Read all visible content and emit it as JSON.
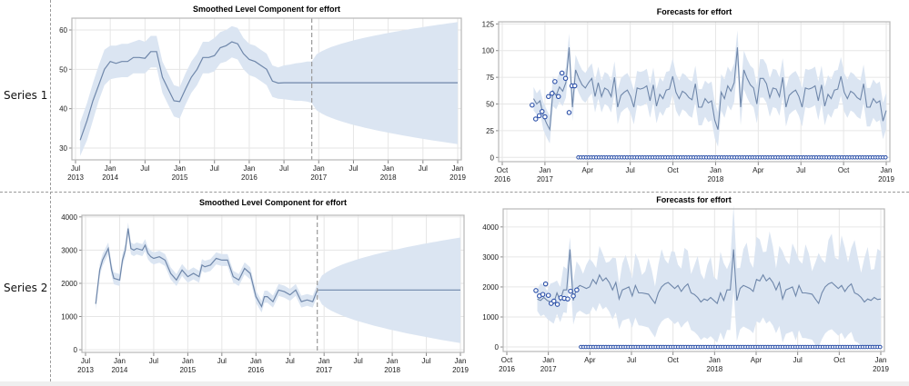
{
  "rows": [
    {
      "label": "Series 1"
    },
    {
      "label": "Series 2"
    }
  ],
  "colors": {
    "band": "#dbe5f2",
    "line": "#6f87aa",
    "marker": "#2a4fa8",
    "grid": "#e6e6e6",
    "frame": "#b7b7b7",
    "refline": "#9a9a9a"
  },
  "chart_data": [
    {
      "id": "s1-level",
      "type": "line",
      "title": "Smoothed Level Component for effort",
      "xlabel": "",
      "ylabel": "",
      "xlim": [
        "2013-07",
        "2019-01"
      ],
      "ylim": [
        27,
        63
      ],
      "yticks": [
        30,
        40,
        50,
        60
      ],
      "xticks": [
        {
          "t": 0,
          "l1": "Jul",
          "l2": "2013"
        },
        {
          "t": 6,
          "l1": "Jan",
          "l2": "2014"
        },
        {
          "t": 12,
          "l1": "Jul",
          "l2": ""
        },
        {
          "t": 18,
          "l1": "Jan",
          "l2": "2015"
        },
        {
          "t": 24,
          "l1": "Jul",
          "l2": ""
        },
        {
          "t": 30,
          "l1": "Jan",
          "l2": "2016"
        },
        {
          "t": 36,
          "l1": "Jul",
          "l2": ""
        },
        {
          "t": 42,
          "l1": "Jan",
          "l2": "2017"
        },
        {
          "t": 48,
          "l1": "Jul",
          "l2": ""
        },
        {
          "t": 54,
          "l1": "Jan",
          "l2": "2018"
        },
        {
          "t": 60,
          "l1": "Jul",
          "l2": ""
        },
        {
          "t": 66,
          "l1": "Jan",
          "l2": "2019"
        }
      ],
      "forecast_start_month": 40.8,
      "grid": true,
      "series": {
        "months": [
          0.8,
          2,
          3,
          4,
          5,
          6,
          7,
          8,
          9,
          10,
          11,
          12,
          13,
          14,
          15,
          16,
          17,
          18,
          19,
          20,
          21,
          22,
          23,
          24,
          25,
          26,
          27,
          28,
          29,
          30,
          31,
          32,
          33,
          34,
          35,
          36,
          37,
          38,
          39,
          40,
          40.8,
          66
        ],
        "level": [
          32,
          37,
          42,
          46,
          50,
          52,
          51.5,
          52,
          52,
          53,
          53,
          52.8,
          54.5,
          54.5,
          48,
          45,
          42,
          41.8,
          45,
          48,
          50,
          53,
          53,
          53.5,
          55.5,
          56,
          57,
          56.5,
          54,
          52.5,
          52,
          51,
          50,
          47,
          46.5,
          46.6,
          46.6,
          46.6,
          46.6,
          46.6,
          46.6,
          46.6
        ],
        "lower": [
          28,
          32,
          37,
          42,
          46,
          47.5,
          47.8,
          48,
          48,
          49,
          49,
          49,
          50.5,
          50.5,
          44,
          41,
          38,
          37.5,
          41,
          44,
          46,
          49,
          49,
          49.5,
          51.5,
          52,
          53,
          52.5,
          50,
          48.5,
          48,
          47,
          46,
          43,
          42.5,
          42.4,
          42.2,
          42,
          42,
          41.8,
          41.5,
          31
        ],
        "upper": [
          36.5,
          41.5,
          46.5,
          51,
          55,
          56,
          56,
          56.5,
          56.5,
          57,
          57.5,
          57,
          58.5,
          58.5,
          52,
          49,
          46,
          45.5,
          49,
          52,
          54,
          57,
          57,
          58,
          59.5,
          60,
          61,
          60.5,
          58,
          56.5,
          56,
          55,
          54,
          51,
          50.5,
          51,
          51.2,
          51.5,
          51.7,
          52,
          52,
          62
        ]
      }
    },
    {
      "id": "s1-forecast",
      "type": "line",
      "title": "Forecasts for effort",
      "xlabel": "",
      "ylabel": "",
      "xlim": [
        "2016-10",
        "2019-01"
      ],
      "ylim": [
        -4,
        127
      ],
      "yticks": [
        0,
        25,
        50,
        75,
        100,
        125
      ],
      "xticks": [
        {
          "t": 0,
          "l1": "Oct",
          "l2": "2016"
        },
        {
          "t": 3,
          "l1": "Jan",
          "l2": "2017"
        },
        {
          "t": 6,
          "l1": "Apr",
          "l2": ""
        },
        {
          "t": 9,
          "l1": "Jul",
          "l2": ""
        },
        {
          "t": 12,
          "l1": "Oct",
          "l2": ""
        },
        {
          "t": 15,
          "l1": "Jan",
          "l2": "2018"
        },
        {
          "t": 18,
          "l1": "Apr",
          "l2": ""
        },
        {
          "t": 21,
          "l1": "Jul",
          "l2": ""
        },
        {
          "t": 24,
          "l1": "Oct",
          "l2": ""
        },
        {
          "t": 27,
          "l1": "Jan",
          "l2": "2019"
        }
      ],
      "grid": true,
      "observed_points": [
        [
          2.1,
          49
        ],
        [
          2.35,
          36
        ],
        [
          2.6,
          39
        ],
        [
          2.8,
          43
        ],
        [
          3.0,
          38
        ],
        [
          3.25,
          57
        ],
        [
          3.5,
          60
        ],
        [
          3.7,
          71
        ],
        [
          3.95,
          57
        ],
        [
          4.2,
          79
        ],
        [
          4.45,
          74
        ],
        [
          4.7,
          42
        ],
        [
          4.9,
          67
        ],
        [
          5.1,
          67
        ]
      ],
      "zero_points_range": [
        5.35,
        27
      ],
      "forecast_line": [
        55,
        50,
        53,
        39,
        32,
        26,
        62,
        58,
        66,
        62,
        70,
        103,
        47,
        82,
        74,
        68,
        65,
        70,
        74,
        57,
        70,
        57,
        65,
        63,
        57,
        75,
        47,
        58,
        61,
        63,
        57,
        47,
        65,
        64,
        65,
        67,
        53,
        68,
        48,
        59,
        55,
        63,
        64,
        76,
        61,
        55,
        62,
        60,
        56,
        54,
        69,
        47,
        47,
        55,
        51,
        53,
        35,
        26,
        61,
        55,
        67,
        62,
        70,
        103,
        47,
        82,
        74,
        68,
        65,
        50,
        74,
        74,
        69,
        56,
        65,
        64,
        57,
        75,
        47,
        58,
        61,
        63,
        57,
        47,
        65,
        64,
        65,
        67,
        53,
        68,
        48,
        59,
        55,
        63,
        64,
        76,
        61,
        55,
        62,
        60,
        56,
        54,
        69,
        47,
        47,
        55,
        51,
        53,
        34,
        44
      ],
      "forecast_x_start": 2.2,
      "forecast_x_end": 27,
      "band_halfwidth": [
        11,
        10,
        11,
        13,
        13,
        13,
        14,
        13,
        14,
        14,
        14,
        13,
        13,
        14,
        14,
        14,
        14,
        14,
        14,
        15,
        15,
        15,
        15,
        15,
        15,
        15,
        16,
        16,
        16,
        16,
        16,
        16,
        16,
        16,
        16,
        16,
        16,
        16,
        16,
        16,
        16,
        17,
        17,
        17,
        17,
        17,
        17,
        17,
        17,
        17,
        17,
        17,
        17,
        17,
        18,
        18,
        17,
        16,
        17,
        18,
        18,
        18,
        18,
        16,
        17,
        18,
        18,
        18,
        18,
        18,
        18,
        18,
        18,
        18,
        18,
        18,
        18,
        18,
        18,
        18,
        18,
        18,
        18,
        18,
        18,
        18,
        18,
        18,
        18,
        18,
        18,
        18,
        18,
        18,
        18,
        18,
        18,
        18,
        18,
        18,
        18,
        18,
        18,
        18,
        18,
        18,
        18,
        18,
        17,
        17
      ]
    },
    {
      "id": "s2-level",
      "type": "line",
      "title": "Smoothed Level Component for effort",
      "xlabel": "",
      "ylabel": "",
      "xlim": [
        "2013-07",
        "2019-01"
      ],
      "ylim": [
        -80,
        4050
      ],
      "yticks": [
        0,
        1000,
        2000,
        3000,
        4000
      ],
      "xticks": [
        {
          "t": 0,
          "l1": "Jul",
          "l2": "2013"
        },
        {
          "t": 6,
          "l1": "Jan",
          "l2": "2014"
        },
        {
          "t": 12,
          "l1": "Jul",
          "l2": ""
        },
        {
          "t": 18,
          "l1": "Jan",
          "l2": "2015"
        },
        {
          "t": 24,
          "l1": "Jul",
          "l2": ""
        },
        {
          "t": 30,
          "l1": "Jan",
          "l2": "2016"
        },
        {
          "t": 36,
          "l1": "Jul",
          "l2": ""
        },
        {
          "t": 42,
          "l1": "Jan",
          "l2": "2017"
        },
        {
          "t": 48,
          "l1": "Jul",
          "l2": ""
        },
        {
          "t": 54,
          "l1": "Jan",
          "l2": "2018"
        },
        {
          "t": 60,
          "l1": "Jul",
          "l2": ""
        },
        {
          "t": 66,
          "l1": "Jan",
          "l2": "2019"
        }
      ],
      "forecast_start_month": 40.8,
      "grid": true,
      "series": {
        "months": [
          1.8,
          2.5,
          3,
          4,
          4.6,
          5,
          6,
          6.5,
          7,
          7.5,
          8,
          8.5,
          9,
          10,
          10.5,
          11,
          11.5,
          12,
          13,
          14,
          15,
          16,
          17,
          18,
          19,
          20,
          20.5,
          21,
          22,
          23,
          24,
          25,
          26,
          27,
          28,
          29,
          30,
          31,
          31.5,
          32,
          33,
          34,
          35,
          36,
          37,
          38,
          39,
          40,
          40.8,
          66
        ],
        "level": [
          1380,
          2400,
          2700,
          3050,
          2400,
          2150,
          2100,
          2700,
          3000,
          3650,
          3050,
          3000,
          3050,
          3000,
          3150,
          2900,
          2800,
          2750,
          2800,
          2700,
          2300,
          2100,
          2400,
          2200,
          2300,
          2200,
          2550,
          2500,
          2550,
          2750,
          2700,
          2700,
          2200,
          2100,
          2450,
          2300,
          1600,
          1300,
          1600,
          1600,
          1450,
          1800,
          1750,
          1650,
          1800,
          1450,
          1500,
          1450,
          1800,
          1800
        ],
        "band": 180,
        "forecast_upper_end": 3380,
        "forecast_lower_end": 200
      }
    },
    {
      "id": "s2-forecast",
      "type": "line",
      "title": "Forecasts for effort",
      "xlabel": "",
      "ylabel": "",
      "xlim": [
        "2016-10",
        "2019-01"
      ],
      "ylim": [
        -150,
        4600
      ],
      "yticks": [
        0,
        1000,
        2000,
        3000,
        4000
      ],
      "xticks": [
        {
          "t": 0,
          "l1": "Oct",
          "l2": "2016"
        },
        {
          "t": 3,
          "l1": "Jan",
          "l2": "2017"
        },
        {
          "t": 6,
          "l1": "Apr",
          "l2": ""
        },
        {
          "t": 9,
          "l1": "Jul",
          "l2": ""
        },
        {
          "t": 12,
          "l1": "Oct",
          "l2": ""
        },
        {
          "t": 15,
          "l1": "Jan",
          "l2": "2018"
        },
        {
          "t": 18,
          "l1": "Apr",
          "l2": ""
        },
        {
          "t": 21,
          "l1": "Jul",
          "l2": ""
        },
        {
          "t": 24,
          "l1": "Oct",
          "l2": ""
        },
        {
          "t": 27,
          "l1": "Jan",
          "l2": "2019"
        }
      ],
      "grid": true,
      "observed_points": [
        [
          2.1,
          1880
        ],
        [
          2.35,
          1700
        ],
        [
          2.6,
          1750
        ],
        [
          2.8,
          2100
        ],
        [
          3.0,
          1720
        ],
        [
          3.2,
          1450
        ],
        [
          3.4,
          1530
        ],
        [
          3.65,
          1420
        ],
        [
          3.9,
          1640
        ],
        [
          4.15,
          1620
        ],
        [
          4.4,
          1600
        ],
        [
          4.6,
          1860
        ],
        [
          4.8,
          1700
        ],
        [
          5.05,
          1900
        ]
      ],
      "zero_points_range": [
        5.35,
        27
      ],
      "forecast_line": [
        1600,
        1550,
        1650,
        1550,
        1500,
        1450,
        1800,
        1550,
        1900,
        1900,
        3250,
        1550,
        1950,
        2050,
        2000,
        1950,
        2000,
        2250,
        2100,
        2400,
        2200,
        2300,
        2150,
        1900,
        2150,
        1600,
        1900,
        1950,
        2000,
        1700,
        2050,
        1800,
        1800,
        1780,
        1760,
        1600,
        1450,
        1800,
        2000,
        2100,
        2150,
        2050,
        1950,
        2050,
        1850,
        2000,
        2100,
        1800,
        1750,
        1650,
        1500,
        1600,
        1550,
        1650,
        1550,
        1450,
        1800,
        1550,
        1900,
        1900,
        3250,
        1550,
        1950,
        2050,
        2000,
        1950,
        1850,
        2250,
        2200,
        2400,
        2200,
        2300,
        2150,
        1900,
        2150,
        1600,
        1900,
        1950,
        2000,
        1700,
        2050,
        1800,
        1800,
        1780,
        1760,
        1600,
        1450,
        1800,
        2000,
        2100,
        2150,
        2050,
        1950,
        2050,
        1850,
        2000,
        2100,
        1800,
        1750,
        1650,
        1500,
        1600,
        1550,
        1650,
        1580,
        1600
      ],
      "forecast_x_start": 2.2,
      "forecast_x_end": 27,
      "band_start_halfwidth": 400,
      "band_end_halfwidth": 1650
    }
  ]
}
